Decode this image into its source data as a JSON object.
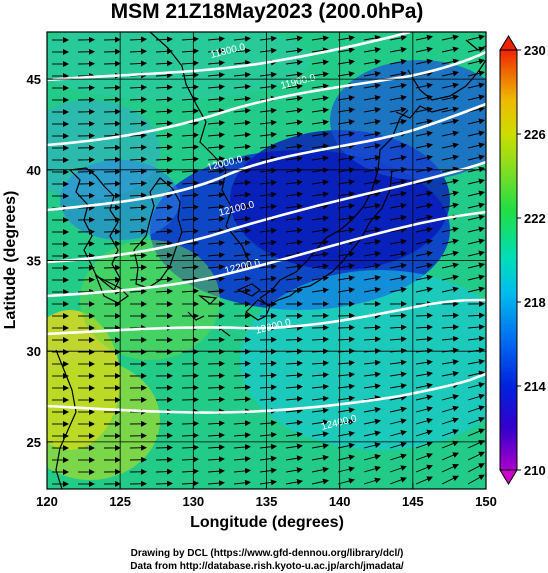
{
  "chart_data": {
    "type": "heatmap",
    "title": "MSM 21Z18May2023 (200.0hPa)",
    "xlabel": "Longitude (degrees)",
    "ylabel": "Latitude  (degrees)",
    "xlim": [
      120,
      150
    ],
    "ylim": [
      22.4,
      47.6
    ],
    "x_ticks": [
      "120",
      "125",
      "130",
      "135",
      "140",
      "145",
      "150"
    ],
    "y_ticks": [
      "25",
      "30",
      "35",
      "40",
      "45"
    ],
    "grid": true,
    "colorbar": {
      "min": 210,
      "max": 230,
      "ticks": [
        "210",
        "214",
        "218",
        "222",
        "226",
        "230"
      ],
      "extend": "both",
      "position": "right"
    },
    "contours": [
      {
        "label": "11800.0",
        "lon": 132.4,
        "lat": 46.4
      },
      {
        "label": "11900.0",
        "lon": 137.2,
        "lat": 44.7
      },
      {
        "label": "12000.0",
        "lon": 132.2,
        "lat": 40.2
      },
      {
        "label": "12100.0",
        "lon": 133.0,
        "lat": 37.7
      },
      {
        "label": "12200.0",
        "lon": 133.4,
        "lat": 34.5
      },
      {
        "label": "12300.0",
        "lon": 135.5,
        "lat": 31.2
      },
      {
        "label": "12400.0",
        "lon": 140.0,
        "lat": 25.9
      }
    ]
  },
  "credits": {
    "line1": "Drawing by DCL (https://www.gfd-dennou.org/library/dcl/)",
    "line2": "Data from http://database.rish.kyoto-u.ac.jp/arch/jmadata/"
  },
  "colors": {
    "cold": "#1122bb",
    "warm": "#e8d818",
    "contour": "#ffffff",
    "vector": "#000000",
    "coast": "#000000"
  }
}
